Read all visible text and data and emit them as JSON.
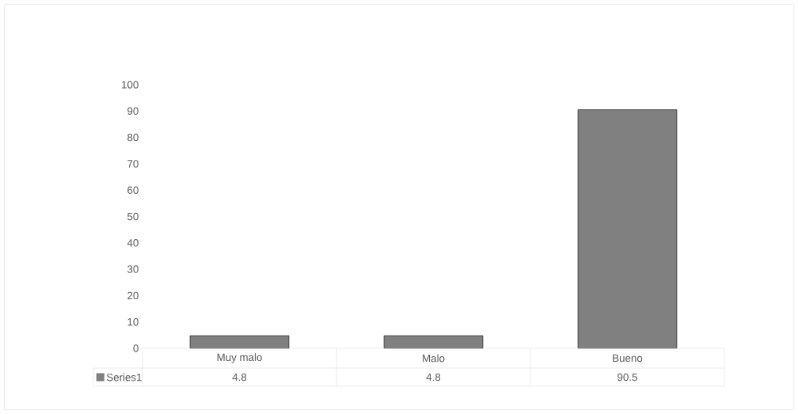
{
  "chart_data": {
    "type": "bar",
    "categories": [
      "Muy malo",
      "Malo",
      "Bueno"
    ],
    "series": [
      {
        "name": "Series1",
        "color": "#808080",
        "values": [
          4.8,
          4.8,
          90.5
        ]
      }
    ],
    "ylim": [
      0,
      100
    ],
    "yticks": [
      0,
      10,
      20,
      30,
      40,
      50,
      60,
      70,
      80,
      90,
      100
    ],
    "grid": false,
    "legend": "bottom",
    "data_labels": true
  }
}
